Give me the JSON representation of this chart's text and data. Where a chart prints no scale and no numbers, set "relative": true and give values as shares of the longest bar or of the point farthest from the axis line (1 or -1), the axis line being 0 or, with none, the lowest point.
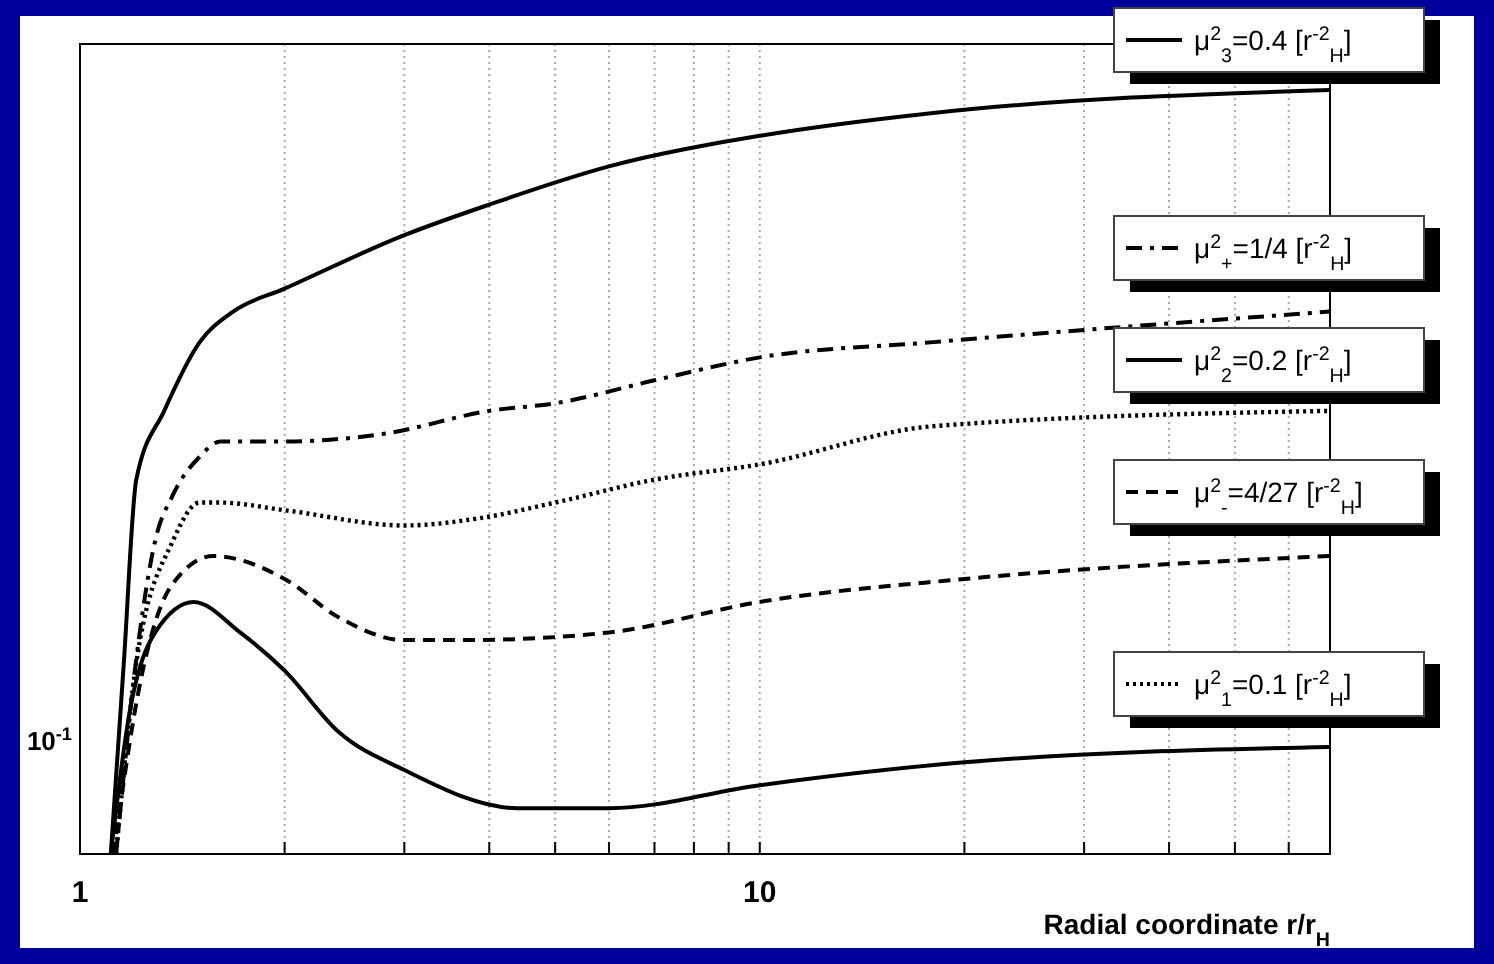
{
  "chart_data": {
    "type": "line",
    "relative": true,
    "xlabel": "Radial coordinate r/r$_{H}$",
    "log": "x",
    "grid": "x",
    "legend": "right",
    "marker": "none",
    "xlim": [
      1,
      69
    ],
    "xticks": [
      1,
      {
        "value": 2,
        "label": null
      },
      {
        "value": 3,
        "label": null
      },
      {
        "value": 4,
        "label": null
      },
      {
        "value": 5,
        "label": null
      },
      {
        "value": 6,
        "label": null
      },
      {
        "value": 7,
        "label": null
      },
      {
        "value": 8,
        "label": null
      },
      {
        "value": 9,
        "label": null
      },
      10,
      {
        "value": 20,
        "label": null
      },
      {
        "value": 30,
        "label": null
      },
      {
        "value": 40,
        "label": null
      },
      {
        "value": 50,
        "label": null
      },
      {
        "value": 60,
        "label": null
      }
    ],
    "annotations": [
      "10$^{-1}$"
    ],
    "series": [
      {
        "name": "μ$^{2}$$_{3}$=0.4 [r$^{-2}$$_{H}$]",
        "color": "#000000",
        "line_style": "solid",
        "x": [
          1.11,
          1.16,
          1.21,
          1.33,
          1.5,
          1.68,
          2,
          3,
          4,
          6,
          10,
          18,
          69
        ],
        "values": [
          0,
          0.25,
          0.49,
          0.58,
          0.67,
          0.71,
          0.74,
          0.81,
          0.85,
          0.9,
          0.94,
          0.97,
          1
        ]
      },
      {
        "name": "μ$^{2}$$_{+}$=1/4 [r$^{-2}$$_{H}$]",
        "color": "#000000",
        "line_style": "dashdot",
        "x": [
          1.13,
          1.22,
          1.29,
          1.37,
          1.5,
          1.61,
          2,
          2.8,
          4,
          5,
          7,
          10,
          18,
          69
        ],
        "values": [
          0,
          0.28,
          0.41,
          0.47,
          0.52,
          0.54,
          0.54,
          0.55,
          0.58,
          0.59,
          0.62,
          0.65,
          0.67,
          0.71
        ]
      },
      {
        "name": "μ$^{2}$$_{2}$=0.2 [r$^{-2}$$_{H}$]",
        "color": "#000000",
        "line_style": "solid",
        "x": [
          1.11,
          1.18,
          1.29,
          1.47,
          1.72,
          2,
          2.4,
          3,
          4.4,
          6,
          10,
          20,
          69
        ],
        "values": [
          0,
          0.18,
          0.29,
          0.33,
          0.29,
          0.24,
          0.16,
          0.11,
          0.06,
          0.06,
          0.09,
          0.12,
          0.14
        ]
      },
      {
        "name": "μ$^{2}$$_{-}$=4/27 [r$^{-2}$$_{H}$]",
        "color": "#000000",
        "line_style": "dashed",
        "x": [
          1.12,
          1.23,
          1.36,
          1.57,
          2,
          2.4,
          3,
          3.7,
          6,
          10,
          20,
          69
        ],
        "values": [
          0,
          0.23,
          0.35,
          0.39,
          0.36,
          0.31,
          0.28,
          0.28,
          0.29,
          0.33,
          0.36,
          0.39
        ]
      },
      {
        "name": "μ$^{2}$$_{1}$=0.1 [r$^{-2}$$_{H}$]",
        "color": "#000000",
        "line_style": "dotted",
        "x": [
          1.13,
          1.21,
          1.37,
          1.5,
          1.61,
          2,
          3,
          3.9,
          5,
          7,
          10,
          18,
          69
        ],
        "values": [
          0,
          0.25,
          0.41,
          0.46,
          0.46,
          0.45,
          0.43,
          0.44,
          0.46,
          0.49,
          0.51,
          0.56,
          0.58
        ]
      }
    ]
  }
}
